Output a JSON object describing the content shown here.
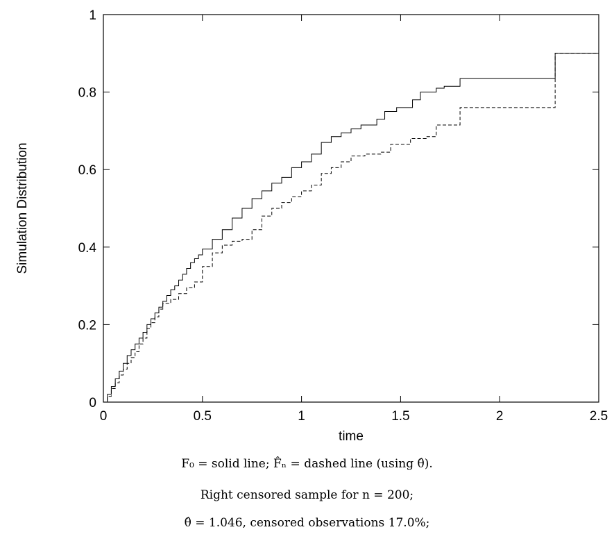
{
  "chart_data": {
    "type": "line",
    "title": "",
    "xlabel": "time",
    "ylabel": "Simulation Distribution",
    "xlim": [
      0,
      2.5
    ],
    "ylim": [
      0,
      1
    ],
    "x_ticks": [
      "0",
      "0.5",
      "1",
      "1.5",
      "2",
      "2.5"
    ],
    "y_ticks": [
      "0",
      "0.2",
      "0.4",
      "0.6",
      "0.8",
      "1"
    ],
    "x_tick_values": [
      0,
      0.5,
      1,
      1.5,
      2,
      2.5
    ],
    "y_tick_values": [
      0,
      0.2,
      0.4,
      0.6,
      0.8,
      1
    ],
    "grid": false,
    "series": [
      {
        "style": "solid",
        "steps": [
          [
            0,
            0
          ],
          [
            0.02,
            0.02
          ],
          [
            0.04,
            0.04
          ],
          [
            0.06,
            0.06
          ],
          [
            0.08,
            0.08
          ],
          [
            0.1,
            0.1
          ],
          [
            0.12,
            0.12
          ],
          [
            0.14,
            0.135
          ],
          [
            0.16,
            0.15
          ],
          [
            0.18,
            0.165
          ],
          [
            0.2,
            0.18
          ],
          [
            0.22,
            0.2
          ],
          [
            0.24,
            0.215
          ],
          [
            0.26,
            0.23
          ],
          [
            0.28,
            0.245
          ],
          [
            0.3,
            0.26
          ],
          [
            0.32,
            0.275
          ],
          [
            0.34,
            0.29
          ],
          [
            0.36,
            0.3
          ],
          [
            0.38,
            0.315
          ],
          [
            0.4,
            0.33
          ],
          [
            0.42,
            0.345
          ],
          [
            0.44,
            0.36
          ],
          [
            0.46,
            0.37
          ],
          [
            0.48,
            0.38
          ],
          [
            0.5,
            0.395
          ],
          [
            0.55,
            0.42
          ],
          [
            0.6,
            0.445
          ],
          [
            0.65,
            0.475
          ],
          [
            0.7,
            0.5
          ],
          [
            0.75,
            0.525
          ],
          [
            0.8,
            0.545
          ],
          [
            0.85,
            0.565
          ],
          [
            0.9,
            0.58
          ],
          [
            0.95,
            0.605
          ],
          [
            1.0,
            0.62
          ],
          [
            1.05,
            0.64
          ],
          [
            1.1,
            0.67
          ],
          [
            1.15,
            0.685
          ],
          [
            1.2,
            0.695
          ],
          [
            1.25,
            0.705
          ],
          [
            1.3,
            0.715
          ],
          [
            1.38,
            0.73
          ],
          [
            1.42,
            0.75
          ],
          [
            1.48,
            0.76
          ],
          [
            1.56,
            0.78
          ],
          [
            1.6,
            0.8
          ],
          [
            1.68,
            0.81
          ],
          [
            1.72,
            0.815
          ],
          [
            1.8,
            0.835
          ],
          [
            2.28,
            0.9
          ],
          [
            2.5,
            0.9
          ]
        ]
      },
      {
        "style": "dashed",
        "steps": [
          [
            0,
            0
          ],
          [
            0.02,
            0.015
          ],
          [
            0.04,
            0.035
          ],
          [
            0.06,
            0.05
          ],
          [
            0.08,
            0.07
          ],
          [
            0.1,
            0.085
          ],
          [
            0.12,
            0.1
          ],
          [
            0.14,
            0.115
          ],
          [
            0.16,
            0.13
          ],
          [
            0.18,
            0.15
          ],
          [
            0.2,
            0.165
          ],
          [
            0.22,
            0.19
          ],
          [
            0.24,
            0.205
          ],
          [
            0.26,
            0.22
          ],
          [
            0.28,
            0.24
          ],
          [
            0.3,
            0.255
          ],
          [
            0.34,
            0.265
          ],
          [
            0.38,
            0.28
          ],
          [
            0.42,
            0.295
          ],
          [
            0.46,
            0.31
          ],
          [
            0.5,
            0.35
          ],
          [
            0.55,
            0.385
          ],
          [
            0.6,
            0.405
          ],
          [
            0.65,
            0.415
          ],
          [
            0.7,
            0.42
          ],
          [
            0.75,
            0.445
          ],
          [
            0.8,
            0.48
          ],
          [
            0.85,
            0.5
          ],
          [
            0.9,
            0.515
          ],
          [
            0.95,
            0.53
          ],
          [
            1.0,
            0.545
          ],
          [
            1.05,
            0.56
          ],
          [
            1.1,
            0.59
          ],
          [
            1.15,
            0.605
          ],
          [
            1.2,
            0.62
          ],
          [
            1.25,
            0.635
          ],
          [
            1.32,
            0.64
          ],
          [
            1.4,
            0.645
          ],
          [
            1.45,
            0.665
          ],
          [
            1.55,
            0.68
          ],
          [
            1.63,
            0.685
          ],
          [
            1.68,
            0.715
          ],
          [
            1.8,
            0.76
          ],
          [
            2.28,
            0.9
          ],
          [
            2.5,
            0.9
          ]
        ]
      }
    ]
  },
  "caption": {
    "line1": "F₀ = solid line;   F̂ₙ = dashed line (using θ̂).",
    "line2": "Right censored sample for n = 200;",
    "line3": "θ̂ = 1.046, censored observations 17.0%;"
  }
}
